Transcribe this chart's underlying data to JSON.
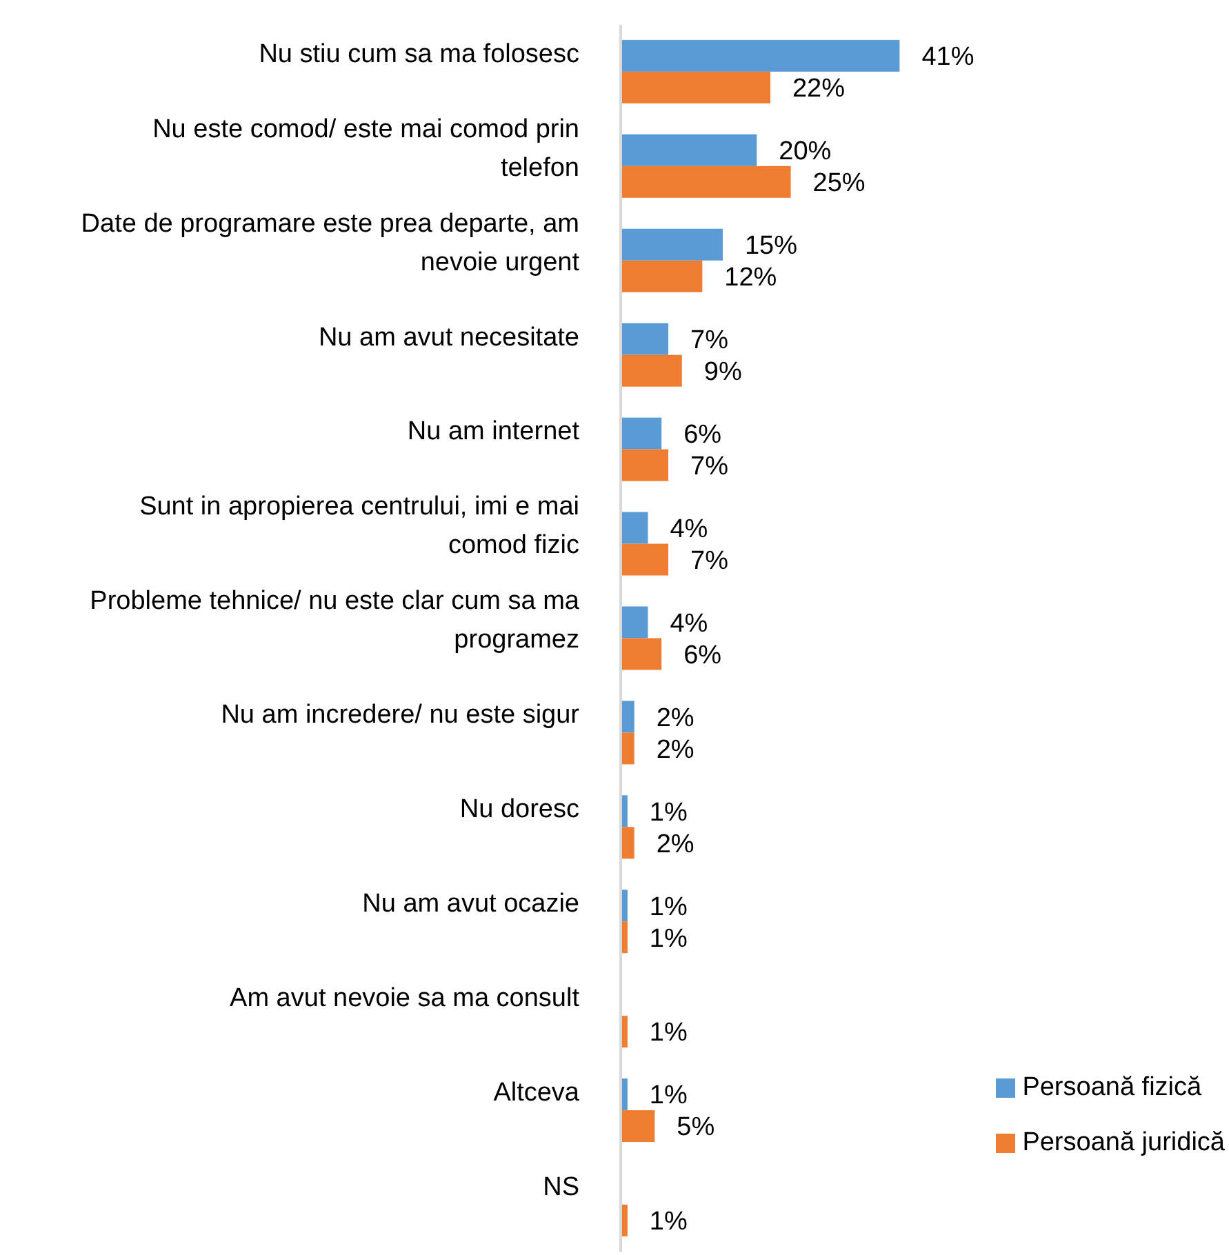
{
  "chart_data": {
    "type": "bar",
    "orientation": "horizontal",
    "legend": "bottom right",
    "categories": [
      "Nu stiu cum sa ma folosesc",
      "Nu este comod/ este mai comod prin telefon",
      "Date de programare este prea departe, am nevoie urgent",
      "Nu am avut necesitate",
      "Nu am internet",
      "Sunt in apropierea centrului, imi e mai comod fizic",
      "Probleme tehnice/ nu este clar cum sa ma programez",
      "Nu am incredere/ nu este sigur",
      "Nu doresc",
      "Nu am avut ocazie",
      "Am avut nevoie sa ma consult",
      "Altceva",
      "NS"
    ],
    "series": [
      {
        "name": "Persoană fizică",
        "color": "#5b9bd5",
        "values": [
          41,
          20,
          15,
          7,
          6,
          4,
          4,
          2,
          1,
          1,
          null,
          1,
          null
        ],
        "value_labels": [
          "41%",
          "20%",
          "15%",
          "7%",
          "6%",
          "4%",
          "4%",
          "2%",
          "1%",
          "1%",
          null,
          "1%",
          null
        ]
      },
      {
        "name": "Persoană juridică",
        "color": "#ed7d31",
        "values": [
          22,
          25,
          12,
          9,
          7,
          7,
          6,
          2,
          2,
          1,
          1,
          5,
          1
        ],
        "value_labels": [
          "22%",
          "25%",
          "12%",
          "9%",
          "7%",
          "7%",
          "6%",
          "2%",
          "2%",
          "1%",
          "1%",
          "5%",
          "1%"
        ]
      }
    ]
  }
}
